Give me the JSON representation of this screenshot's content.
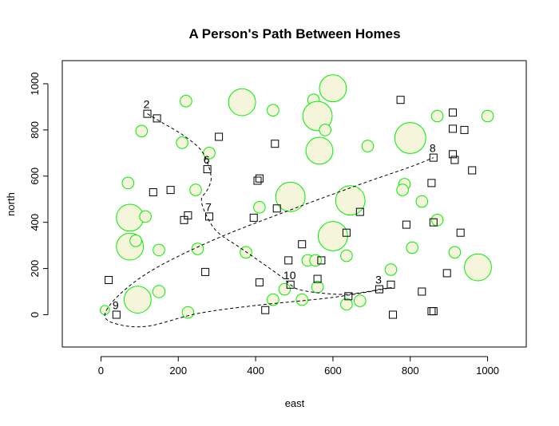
{
  "chart_data": {
    "type": "scatter",
    "title": "A Person's Path Between Homes",
    "xlabel": "east",
    "ylabel": "north",
    "xlim": [
      -100,
      1100
    ],
    "ylim": [
      -140,
      1100
    ],
    "x_ticks": [
      0,
      200,
      400,
      600,
      800,
      1000
    ],
    "y_ticks": [
      0,
      200,
      400,
      600,
      800,
      1000
    ],
    "colors": {
      "circle_stroke": "#00ee00",
      "circle_fill": "#f5f5dc",
      "square_stroke": "#000000",
      "path": "#000000"
    },
    "circles": [
      {
        "x": 10,
        "y": 20,
        "r": 12
      },
      {
        "x": 95,
        "y": 65,
        "r": 35
      },
      {
        "x": 150,
        "y": 100,
        "r": 16
      },
      {
        "x": 225,
        "y": 10,
        "r": 15
      },
      {
        "x": 75,
        "y": 295,
        "r": 35
      },
      {
        "x": 90,
        "y": 320,
        "r": 15
      },
      {
        "x": 150,
        "y": 280,
        "r": 15
      },
      {
        "x": 250,
        "y": 285,
        "r": 15
      },
      {
        "x": 75,
        "y": 420,
        "r": 35
      },
      {
        "x": 115,
        "y": 425,
        "r": 15
      },
      {
        "x": 70,
        "y": 570,
        "r": 15
      },
      {
        "x": 245,
        "y": 540,
        "r": 15
      },
      {
        "x": 210,
        "y": 745,
        "r": 15
      },
      {
        "x": 280,
        "y": 700,
        "r": 15
      },
      {
        "x": 105,
        "y": 795,
        "r": 15
      },
      {
        "x": 220,
        "y": 925,
        "r": 15
      },
      {
        "x": 365,
        "y": 920,
        "r": 35
      },
      {
        "x": 445,
        "y": 885,
        "r": 15
      },
      {
        "x": 550,
        "y": 930,
        "r": 15
      },
      {
        "x": 600,
        "y": 980,
        "r": 35
      },
      {
        "x": 560,
        "y": 860,
        "r": 38
      },
      {
        "x": 580,
        "y": 800,
        "r": 15
      },
      {
        "x": 565,
        "y": 710,
        "r": 35
      },
      {
        "x": 690,
        "y": 730,
        "r": 15
      },
      {
        "x": 800,
        "y": 765,
        "r": 40
      },
      {
        "x": 870,
        "y": 860,
        "r": 15
      },
      {
        "x": 1000,
        "y": 860,
        "r": 15
      },
      {
        "x": 490,
        "y": 510,
        "r": 38
      },
      {
        "x": 645,
        "y": 495,
        "r": 38
      },
      {
        "x": 410,
        "y": 465,
        "r": 15
      },
      {
        "x": 375,
        "y": 270,
        "r": 15
      },
      {
        "x": 535,
        "y": 235,
        "r": 15
      },
      {
        "x": 555,
        "y": 235,
        "r": 15
      },
      {
        "x": 635,
        "y": 255,
        "r": 15
      },
      {
        "x": 600,
        "y": 340,
        "r": 38
      },
      {
        "x": 785,
        "y": 565,
        "r": 15
      },
      {
        "x": 780,
        "y": 540,
        "r": 15
      },
      {
        "x": 830,
        "y": 490,
        "r": 15
      },
      {
        "x": 870,
        "y": 410,
        "r": 15
      },
      {
        "x": 805,
        "y": 290,
        "r": 15
      },
      {
        "x": 915,
        "y": 270,
        "r": 15
      },
      {
        "x": 975,
        "y": 205,
        "r": 35
      },
      {
        "x": 750,
        "y": 195,
        "r": 15
      },
      {
        "x": 560,
        "y": 120,
        "r": 15
      },
      {
        "x": 475,
        "y": 110,
        "r": 15
      },
      {
        "x": 445,
        "y": 65,
        "r": 15
      },
      {
        "x": 520,
        "y": 65,
        "r": 15
      },
      {
        "x": 635,
        "y": 45,
        "r": 15
      },
      {
        "x": 670,
        "y": 60,
        "r": 15
      }
    ],
    "squares": [
      {
        "x": 20,
        "y": 150
      },
      {
        "x": 40,
        "y": 0
      },
      {
        "x": 135,
        "y": 530
      },
      {
        "x": 180,
        "y": 540
      },
      {
        "x": 215,
        "y": 410
      },
      {
        "x": 225,
        "y": 430
      },
      {
        "x": 270,
        "y": 185
      },
      {
        "x": 280,
        "y": 425
      },
      {
        "x": 275,
        "y": 630
      },
      {
        "x": 305,
        "y": 770
      },
      {
        "x": 120,
        "y": 870
      },
      {
        "x": 145,
        "y": 850
      },
      {
        "x": 395,
        "y": 420
      },
      {
        "x": 405,
        "y": 580
      },
      {
        "x": 410,
        "y": 590
      },
      {
        "x": 410,
        "y": 140
      },
      {
        "x": 425,
        "y": 20
      },
      {
        "x": 450,
        "y": 740
      },
      {
        "x": 455,
        "y": 460
      },
      {
        "x": 485,
        "y": 235
      },
      {
        "x": 490,
        "y": 130
      },
      {
        "x": 520,
        "y": 305
      },
      {
        "x": 560,
        "y": 155
      },
      {
        "x": 570,
        "y": 235
      },
      {
        "x": 635,
        "y": 355
      },
      {
        "x": 640,
        "y": 80
      },
      {
        "x": 670,
        "y": 445
      },
      {
        "x": 720,
        "y": 110
      },
      {
        "x": 750,
        "y": 130
      },
      {
        "x": 755,
        "y": 0
      },
      {
        "x": 775,
        "y": 930
      },
      {
        "x": 790,
        "y": 390
      },
      {
        "x": 830,
        "y": 100
      },
      {
        "x": 855,
        "y": 15
      },
      {
        "x": 860,
        "y": 15
      },
      {
        "x": 855,
        "y": 570
      },
      {
        "x": 860,
        "y": 400
      },
      {
        "x": 860,
        "y": 680
      },
      {
        "x": 895,
        "y": 180
      },
      {
        "x": 910,
        "y": 875
      },
      {
        "x": 910,
        "y": 805
      },
      {
        "x": 910,
        "y": 695
      },
      {
        "x": 915,
        "y": 670
      },
      {
        "x": 930,
        "y": 355
      },
      {
        "x": 940,
        "y": 800
      },
      {
        "x": 960,
        "y": 625
      }
    ],
    "path_labels": [
      {
        "text": "2",
        "x": 120,
        "y": 870
      },
      {
        "text": "6",
        "x": 275,
        "y": 630
      },
      {
        "text": "7",
        "x": 280,
        "y": 425
      },
      {
        "text": "10",
        "x": 490,
        "y": 130
      },
      {
        "text": "3",
        "x": 720,
        "y": 110
      },
      {
        "text": "8",
        "x": 860,
        "y": 680
      },
      {
        "text": "9",
        "x": 40,
        "y": 0
      }
    ],
    "path": [
      {
        "x": 120,
        "y": 870
      },
      {
        "x": 160,
        "y": 830
      },
      {
        "x": 210,
        "y": 780
      },
      {
        "x": 255,
        "y": 720
      },
      {
        "x": 275,
        "y": 660
      },
      {
        "x": 285,
        "y": 590
      },
      {
        "x": 275,
        "y": 540
      },
      {
        "x": 260,
        "y": 500
      },
      {
        "x": 270,
        "y": 440
      },
      {
        "x": 300,
        "y": 360
      },
      {
        "x": 360,
        "y": 290
      },
      {
        "x": 420,
        "y": 220
      },
      {
        "x": 470,
        "y": 160
      },
      {
        "x": 490,
        "y": 130
      },
      {
        "x": 510,
        "y": 110
      },
      {
        "x": 560,
        "y": 95
      },
      {
        "x": 630,
        "y": 88
      },
      {
        "x": 690,
        "y": 100
      },
      {
        "x": 720,
        "y": 110
      },
      {
        "x": 745,
        "y": 115
      },
      {
        "x": 600,
        "y": 75
      },
      {
        "x": 400,
        "y": 40
      },
      {
        "x": 250,
        "y": 5
      },
      {
        "x": 120,
        "y": -50
      },
      {
        "x": 40,
        "y": -40
      },
      {
        "x": 10,
        "y": 0
      },
      {
        "x": 50,
        "y": 90
      },
      {
        "x": 140,
        "y": 200
      },
      {
        "x": 300,
        "y": 330
      },
      {
        "x": 500,
        "y": 460
      },
      {
        "x": 680,
        "y": 570
      },
      {
        "x": 800,
        "y": 640
      },
      {
        "x": 860,
        "y": 680
      }
    ]
  }
}
